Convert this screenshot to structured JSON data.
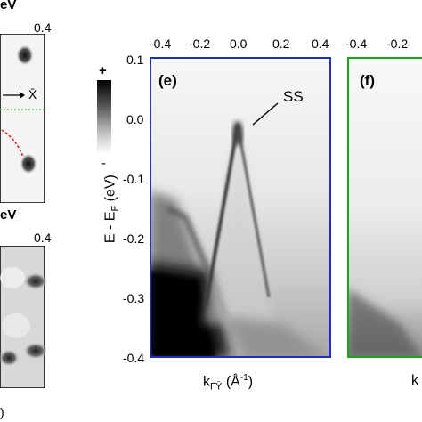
{
  "left_panels": {
    "top": {
      "energy_suffix": "eV",
      "axis_max": "0.4",
      "direction_label": "X̄"
    },
    "bottom": {
      "energy_suffix": "eV",
      "axis_max": "0.4"
    },
    "bottom_label_fragment": ")"
  },
  "colorbar": {
    "plus": "+",
    "minus": "-"
  },
  "axes": {
    "x_ticks": [
      "-0.4",
      "-0.2",
      "0.0",
      "0.2",
      "0.4"
    ],
    "right_x_ticks": [
      "-0.4",
      "-0.2"
    ],
    "y_ticks": [
      "0.1",
      "0.0",
      "-0.1",
      "-0.2",
      "-0.3",
      "-0.4"
    ],
    "ylabel": "E - EF (eV)",
    "xlabel": "kΓ̄Ȳ (Å-1)",
    "xlabel_right_fragment": "k"
  },
  "panels": {
    "e": {
      "label": "(e)",
      "frame_color": "#1f2fbf",
      "annotation": "SS"
    },
    "f": {
      "label": "(f)",
      "frame_color": "#1aa51a"
    }
  }
}
